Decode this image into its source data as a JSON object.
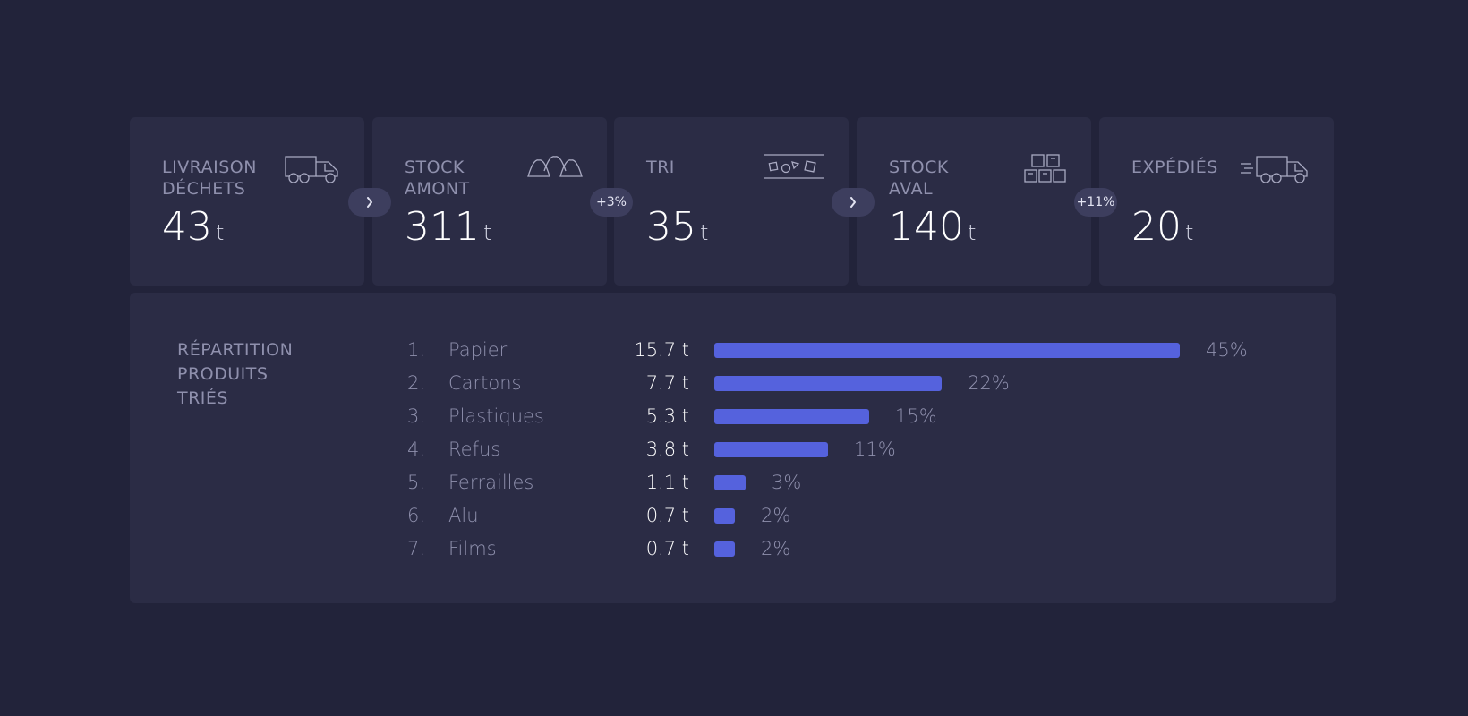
{
  "cards": [
    {
      "label": "LIVRAISON\nDÉCHETS",
      "value": "43",
      "unit": "t",
      "icon": "garbage-truck-icon"
    },
    {
      "label": "STOCK\nAMONT",
      "value": "311",
      "unit": "t",
      "icon": "piles-icon"
    },
    {
      "label": "TRI",
      "value": "35",
      "unit": "t",
      "icon": "conveyor-sorting-icon"
    },
    {
      "label": "STOCK\nAVAL",
      "value": "140",
      "unit": "t",
      "icon": "stacked-bales-icon"
    },
    {
      "label": "EXPÉDIÉS",
      "value": "20",
      "unit": "t",
      "icon": "shipping-truck-icon"
    }
  ],
  "connectors": [
    {
      "type": "chevron",
      "icon": "chevron-right-icon",
      "text": ""
    },
    {
      "type": "text",
      "text": "+3%"
    },
    {
      "type": "chevron",
      "icon": "chevron-right-icon",
      "text": ""
    },
    {
      "type": "text",
      "text": "+11%"
    }
  ],
  "breakdown": {
    "title": "RÉPARTITION\nPRODUITS\nTRIÉS",
    "bar_color": "#5562dd"
  },
  "chart_data": {
    "type": "bar",
    "orientation": "horizontal",
    "title": "RÉPARTITION PRODUITS TRIÉS",
    "categories": [
      "Papier",
      "Cartons",
      "Plastiques",
      "Refus",
      "Ferrailles",
      "Alu",
      "Films"
    ],
    "ranks": [
      "1.",
      "2.",
      "3.",
      "4.",
      "5.",
      "6.",
      "7."
    ],
    "amounts": [
      "15.7 t",
      "7.7 t",
      "5.3 t",
      "3.8 t",
      "1.1 t",
      "0.7 t",
      "0.7 t"
    ],
    "values": [
      45,
      22,
      15,
      11,
      3,
      2,
      2
    ],
    "value_labels": [
      "45%",
      "22%",
      "15%",
      "11%",
      "3%",
      "2%",
      "2%"
    ]
  }
}
